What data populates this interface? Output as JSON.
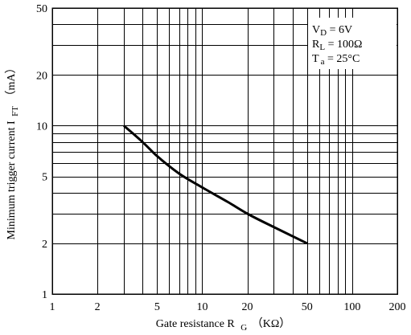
{
  "chart_data": {
    "type": "line",
    "xlabel": "Gate resistance R",
    "xlabel_sub": "G",
    "xlabel_unit": "（KΩ）",
    "ylabel": "Minimum trigger current I",
    "ylabel_sub": "FT",
    "ylabel_unit": "（mA）",
    "x_scale": "log",
    "y_scale": "log",
    "xlim": [
      1,
      200
    ],
    "ylim": [
      1,
      50
    ],
    "x_ticks": [
      1,
      2,
      5,
      10,
      20,
      50,
      100,
      200
    ],
    "y_ticks": [
      1,
      2,
      5,
      10,
      20,
      50
    ],
    "x_tick_labels": [
      "1",
      "2",
      "5",
      "10",
      "20",
      "50",
      "100",
      "200"
    ],
    "y_tick_labels": [
      "1",
      "2",
      "5",
      "10",
      "20",
      "50"
    ],
    "grid": true,
    "series": [
      {
        "x": [
          3,
          4,
          5,
          7,
          10,
          15,
          20,
          30,
          50
        ],
        "y": [
          10,
          8,
          6.6,
          5.2,
          4.3,
          3.5,
          3.0,
          2.5,
          2.0
        ]
      }
    ],
    "conditions": {
      "vd": {
        "sym": "V",
        "sub": "D",
        "val": " = 6V"
      },
      "rl": {
        "sym": "R",
        "sub": "L",
        "val": " = 100Ω"
      },
      "ta": {
        "sym": "T",
        "sub": "a",
        "val": " = 25°C"
      }
    },
    "legend_position": "top-right"
  }
}
